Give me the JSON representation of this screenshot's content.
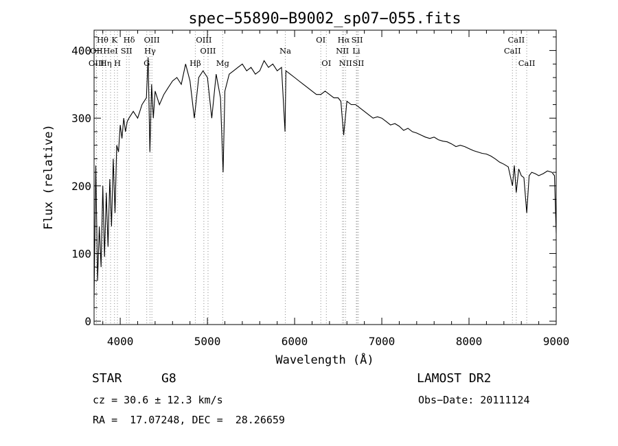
{
  "chart_data": {
    "type": "line",
    "title": "spec−55890−B9002_sp07−055.fits",
    "xlabel": "Wavelength (Å)",
    "ylabel": "Flux (relative)",
    "xlim": [
      3700,
      9000
    ],
    "ylim": [
      -5,
      430
    ],
    "xticks": [
      4000,
      5000,
      6000,
      7000,
      8000,
      9000
    ],
    "yticks": [
      0,
      100,
      200,
      300,
      400
    ],
    "grid": false,
    "legend": "none",
    "series": [
      {
        "x": [
          3700,
          3720,
          3740,
          3760,
          3780,
          3800,
          3820,
          3840,
          3860,
          3880,
          3900,
          3920,
          3940,
          3960,
          3980,
          4000,
          4020,
          4040,
          4060,
          4080,
          4100,
          4150,
          4200,
          4250,
          4300,
          4320,
          4340,
          4360,
          4380,
          4400,
          4450,
          4500,
          4550,
          4600,
          4650,
          4700,
          4750,
          4800,
          4850,
          4900,
          4950,
          5000,
          5050,
          5100,
          5150,
          5180,
          5200,
          5250,
          5300,
          5350,
          5400,
          5450,
          5500,
          5550,
          5600,
          5650,
          5700,
          5750,
          5800,
          5850,
          5890,
          5900,
          5950,
          6000,
          6050,
          6100,
          6150,
          6200,
          6250,
          6300,
          6350,
          6400,
          6450,
          6500,
          6530,
          6563,
          6600,
          6650,
          6700,
          6750,
          6800,
          6850,
          6900,
          6950,
          7000,
          7050,
          7100,
          7150,
          7200,
          7250,
          7300,
          7350,
          7400,
          7450,
          7500,
          7550,
          7600,
          7650,
          7700,
          7750,
          7800,
          7850,
          7900,
          7950,
          8000,
          8050,
          8100,
          8150,
          8200,
          8250,
          8300,
          8350,
          8400,
          8450,
          8498,
          8520,
          8542,
          8570,
          8600,
          8630,
          8662,
          8690,
          8720,
          8760,
          8800,
          8850,
          8900,
          8950,
          8980,
          9000
        ],
        "y": [
          35,
          230,
          60,
          140,
          80,
          200,
          95,
          190,
          110,
          210,
          140,
          240,
          160,
          260,
          250,
          290,
          270,
          300,
          280,
          295,
          300,
          310,
          300,
          320,
          330,
          390,
          250,
          350,
          300,
          340,
          320,
          335,
          345,
          355,
          360,
          350,
          380,
          355,
          300,
          360,
          370,
          360,
          300,
          365,
          330,
          220,
          340,
          365,
          370,
          375,
          380,
          370,
          375,
          365,
          370,
          385,
          375,
          380,
          370,
          375,
          280,
          370,
          365,
          360,
          355,
          350,
          345,
          340,
          335,
          335,
          340,
          335,
          330,
          330,
          325,
          275,
          325,
          320,
          320,
          315,
          310,
          305,
          300,
          302,
          300,
          295,
          290,
          292,
          288,
          282,
          285,
          280,
          278,
          275,
          272,
          270,
          272,
          268,
          266,
          265,
          262,
          258,
          260,
          258,
          255,
          252,
          250,
          248,
          247,
          244,
          240,
          235,
          232,
          228,
          200,
          230,
          190,
          225,
          215,
          212,
          160,
          215,
          220,
          218,
          215,
          218,
          222,
          220,
          215,
          130
        ]
      }
    ],
    "line_labels": [
      {
        "label": "Hθ",
        "x": 3798,
        "row": 1
      },
      {
        "label": "OII",
        "x": 3727,
        "row": 2
      },
      {
        "label": "OIII",
        "x": 3727,
        "row": 3
      },
      {
        "label": "Hη",
        "x": 3835,
        "row": 3
      },
      {
        "label": "HeI",
        "x": 3889,
        "row": 2
      },
      {
        "label": "K",
        "x": 3934,
        "row": 1
      },
      {
        "label": "H",
        "x": 3968,
        "row": 3
      },
      {
        "label": "SII",
        "x": 4072,
        "row": 2
      },
      {
        "label": "Hδ",
        "x": 4102,
        "row": 1
      },
      {
        "label": "OIII",
        "x": 4363,
        "row": 1
      },
      {
        "label": "Hγ",
        "x": 4341,
        "row": 2
      },
      {
        "label": "G",
        "x": 4304,
        "row": 3
      },
      {
        "label": "Hβ",
        "x": 4861,
        "row": 3
      },
      {
        "label": "OIII",
        "x": 4959,
        "row": 1
      },
      {
        "label": "OIII",
        "x": 5007,
        "row": 2
      },
      {
        "label": "Mg",
        "x": 5175,
        "row": 3
      },
      {
        "label": "Na",
        "x": 5893,
        "row": 2
      },
      {
        "label": "OI",
        "x": 6300,
        "row": 1
      },
      {
        "label": "OI",
        "x": 6364,
        "row": 3
      },
      {
        "label": "Hα",
        "x": 6563,
        "row": 1
      },
      {
        "label": "NII",
        "x": 6548,
        "row": 2
      },
      {
        "label": "NII",
        "x": 6584,
        "row": 3
      },
      {
        "label": "SII",
        "x": 6717,
        "row": 1
      },
      {
        "label": "Li",
        "x": 6708,
        "row": 2
      },
      {
        "label": "SII",
        "x": 6731,
        "row": 3
      },
      {
        "label": "CaII",
        "x": 8542,
        "row": 1
      },
      {
        "label": "CaII",
        "x": 8498,
        "row": 2
      },
      {
        "label": "CaII",
        "x": 8662,
        "row": 3
      }
    ]
  },
  "info": {
    "object_type": "STAR",
    "subclass": "G8",
    "survey": "LAMOST DR2",
    "cz": "cz = 30.6 ± 12.3 km/s",
    "obs_date": "Obs−Date: 20111124",
    "coords": "RA =  17.07248, DEC =  28.26659"
  }
}
